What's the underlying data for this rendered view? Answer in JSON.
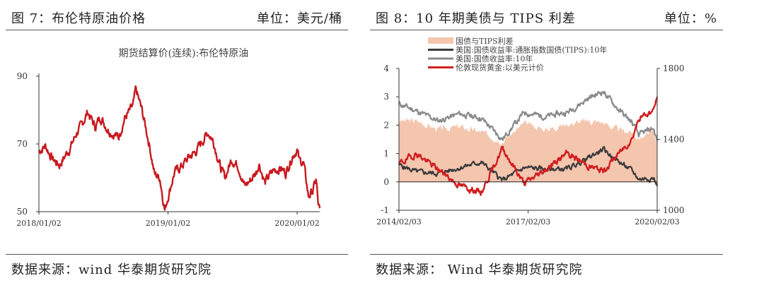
{
  "left": {
    "fig_title": "图 7：布伦特原油价格",
    "unit": "单位：美元/桶",
    "source": "数据来源：wind 华泰期货研究院"
  },
  "right": {
    "fig_title": "图 8：10 年期美债与 TIPS 利差",
    "unit": "单位：%",
    "source": "数据来源：  Wind 华泰期货研究院"
  },
  "chart_data": [
    {
      "type": "line",
      "title": "期货结算价(连续):布伦特原油",
      "x_ticks": [
        "2018/01/02",
        "2019/01/02",
        "2020/01/02"
      ],
      "y_ticks": [
        50,
        70,
        90
      ],
      "ylim": [
        50,
        90
      ],
      "grid": false,
      "colors": {
        "line": "#c8191f"
      },
      "series": [
        {
          "name": "期货结算价(连续):布伦特原油",
          "x": [
            "2018/01/02",
            "2018/01/20",
            "2018/02/10",
            "2018/03/01",
            "2018/04/01",
            "2018/04/20",
            "2018/05/01",
            "2018/05/20",
            "2018/06/10",
            "2018/06/25",
            "2018/07/15",
            "2018/08/01",
            "2018/08/15",
            "2018/09/01",
            "2018/09/25",
            "2018/10/03",
            "2018/10/20",
            "2018/11/10",
            "2018/11/25",
            "2018/12/10",
            "2018/12/24",
            "2019/01/02",
            "2019/01/20",
            "2019/02/10",
            "2019/03/01",
            "2019/03/20",
            "2019/04/10",
            "2019/04/25",
            "2019/05/10",
            "2019/06/01",
            "2019/06/12",
            "2019/07/01",
            "2019/07/20",
            "2019/08/07",
            "2019/08/25",
            "2019/09/10",
            "2019/09/16",
            "2019/10/03",
            "2019/10/25",
            "2019/11/15",
            "2019/12/01",
            "2019/12/20",
            "2020/01/02",
            "2020/01/08",
            "2020/01/20",
            "2020/02/03",
            "2020/02/15",
            "2020/02/25",
            "2020/03/02",
            "2020/03/06"
          ],
          "values": [
            67.8,
            69.5,
            65.5,
            63.8,
            69.0,
            73.5,
            75.0,
            79.5,
            75.0,
            78.0,
            74.5,
            73.0,
            72.0,
            77.5,
            81.0,
            86.0,
            80.0,
            70.0,
            61.0,
            60.0,
            50.5,
            54.5,
            61.5,
            63.5,
            66.0,
            67.5,
            71.0,
            73.5,
            71.0,
            62.5,
            60.0,
            65.5,
            63.5,
            57.5,
            59.5,
            62.0,
            64.5,
            58.5,
            62.0,
            63.0,
            61.5,
            66.5,
            68.5,
            65.0,
            64.5,
            54.5,
            56.0,
            59.5,
            51.5,
            51.0
          ]
        }
      ]
    },
    {
      "type": "line",
      "legend": [
        "国债与TIPS利差",
        "美国:国债收益率:通胀指数国债(TIPS):10年",
        "美国:国债收益率:10年",
        "伦敦现货黄金:以美元计价"
      ],
      "legend_position": "top",
      "x_ticks": [
        "2014/02/03",
        "2017/02/03",
        "2020/02/03"
      ],
      "y_left_ticks": [
        -1,
        0,
        1,
        2,
        3,
        4
      ],
      "y_left_lim": [
        -1,
        4
      ],
      "y_right_ticks": [
        1000,
        1400,
        1800
      ],
      "y_right_lim": [
        1000,
        1800
      ],
      "grid": false,
      "colors": {
        "spread": "#f4c6ae",
        "tips": "#3b3b3b",
        "nominal": "#8a8a8a",
        "gold": "#d11f22"
      },
      "x": [
        "2014/02/03",
        "2014/07/01",
        "2015/01/01",
        "2015/07/01",
        "2016/01/01",
        "2016/07/01",
        "2017/01/01",
        "2017/07/01",
        "2018/01/01",
        "2018/07/01",
        "2018/11/01",
        "2019/03/01",
        "2019/07/01",
        "2019/09/01",
        "2020/01/01",
        "2020/02/03"
      ],
      "series": [
        {
          "name": "国债与TIPS利差",
          "axis": "left",
          "type": "area",
          "values": [
            2.15,
            2.15,
            1.85,
            1.95,
            1.75,
            1.45,
            2.05,
            1.85,
            2.05,
            2.15,
            2.1,
            1.85,
            1.75,
            1.55,
            1.75,
            1.45
          ]
        },
        {
          "name": "美国:国债收益率:通胀指数国债(TIPS):10年",
          "axis": "left",
          "values": [
            0.6,
            0.35,
            0.3,
            0.5,
            0.7,
            0.05,
            0.5,
            0.45,
            0.45,
            0.85,
            1.15,
            0.75,
            0.4,
            0.1,
            0.15,
            -0.15
          ]
        },
        {
          "name": "美国:国债收益率:10年",
          "axis": "left",
          "values": [
            2.75,
            2.5,
            2.15,
            2.4,
            2.25,
            1.5,
            2.45,
            2.3,
            2.45,
            2.95,
            3.2,
            2.6,
            2.1,
            1.65,
            1.9,
            1.45
          ]
        },
        {
          "name": "伦敦现货黄金:以美元计价",
          "axis": "right",
          "values": [
            1260,
            1320,
            1230,
            1140,
            1100,
            1350,
            1150,
            1230,
            1320,
            1250,
            1220,
            1310,
            1400,
            1520,
            1560,
            1640
          ]
        }
      ]
    }
  ]
}
